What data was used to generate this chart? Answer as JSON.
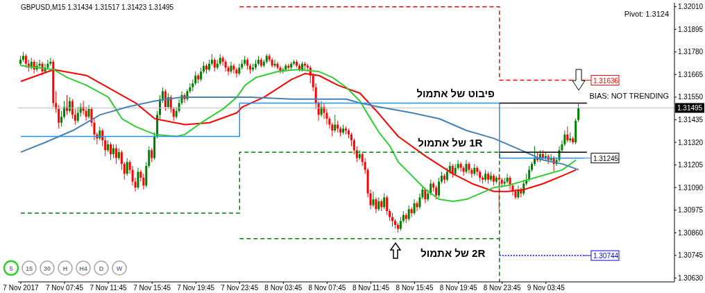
{
  "chart_data": {
    "type": "candlestick",
    "title": "GBPUSD,M15 1.31434 1.31517 1.31423 1.31495",
    "x": [
      "2017-11-07T03:45",
      "2017-11-07T04:00",
      "2017-11-07T04:15",
      "2017-11-07T04:30",
      "2017-11-07T04:45",
      "2017-11-07T05:00",
      "2017-11-07T05:15",
      "2017-11-07T05:30",
      "2017-11-07T05:45",
      "2017-11-07T06:00",
      "2017-11-07T06:15",
      "2017-11-07T06:30",
      "2017-11-07T06:45",
      "2017-11-07T07:00",
      "2017-11-07T07:15",
      "2017-11-07T07:30",
      "2017-11-07T07:45",
      "2017-11-07T08:00",
      "2017-11-07T08:15",
      "2017-11-07T08:30",
      "2017-11-07T08:45",
      "2017-11-07T09:00",
      "2017-11-07T09:15",
      "2017-11-07T09:30",
      "2017-11-07T09:45",
      "2017-11-07T10:00",
      "2017-11-07T10:15",
      "2017-11-07T10:30",
      "2017-11-07T10:45",
      "2017-11-07T11:00",
      "2017-11-07T11:15",
      "2017-11-07T11:30",
      "2017-11-07T11:45",
      "2017-11-07T12:00",
      "2017-11-07T12:15",
      "2017-11-07T12:30",
      "2017-11-07T12:45",
      "2017-11-07T13:00",
      "2017-11-07T13:15",
      "2017-11-07T13:30",
      "2017-11-07T13:45",
      "2017-11-07T14:00",
      "2017-11-07T14:15",
      "2017-11-07T14:30",
      "2017-11-07T14:45",
      "2017-11-07T15:00",
      "2017-11-07T15:15",
      "2017-11-07T15:30",
      "2017-11-07T15:45",
      "2017-11-07T16:00",
      "2017-11-07T16:15",
      "2017-11-07T16:30",
      "2017-11-07T16:45",
      "2017-11-07T17:00",
      "2017-11-07T17:15",
      "2017-11-07T17:30",
      "2017-11-07T17:45",
      "2017-11-07T18:00",
      "2017-11-07T18:15",
      "2017-11-07T18:30",
      "2017-11-07T18:45",
      "2017-11-07T19:00",
      "2017-11-07T19:15",
      "2017-11-07T19:30",
      "2017-11-07T19:45",
      "2017-11-07T20:00",
      "2017-11-07T20:15",
      "2017-11-07T20:30",
      "2017-11-07T20:45",
      "2017-11-07T21:00",
      "2017-11-07T21:15",
      "2017-11-07T21:30",
      "2017-11-07T21:45",
      "2017-11-07T22:00",
      "2017-11-07T22:15",
      "2017-11-07T22:30",
      "2017-11-07T22:45",
      "2017-11-07T23:00",
      "2017-11-07T23:15",
      "2017-11-07T23:30",
      "2017-11-07T23:45",
      "2017-11-08T00:00",
      "2017-11-08T00:15",
      "2017-11-08T00:30",
      "2017-11-08T00:45",
      "2017-11-08T01:00",
      "2017-11-08T01:15",
      "2017-11-08T01:30",
      "2017-11-08T01:45",
      "2017-11-08T02:00",
      "2017-11-08T02:15",
      "2017-11-08T02:30",
      "2017-11-08T02:45",
      "2017-11-08T03:00",
      "2017-11-08T03:15",
      "2017-11-08T03:30",
      "2017-11-08T03:45",
      "2017-11-08T04:00",
      "2017-11-08T04:15",
      "2017-11-08T04:30",
      "2017-11-08T04:45",
      "2017-11-08T05:00",
      "2017-11-08T05:15",
      "2017-11-08T05:30",
      "2017-11-08T05:45",
      "2017-11-08T06:00",
      "2017-11-08T06:15",
      "2017-11-08T06:30",
      "2017-11-08T06:45",
      "2017-11-08T07:00",
      "2017-11-08T07:15",
      "2017-11-08T07:30",
      "2017-11-08T07:45",
      "2017-11-08T08:00",
      "2017-11-08T08:15",
      "2017-11-08T08:30",
      "2017-11-08T08:45",
      "2017-11-08T09:00",
      "2017-11-08T09:15",
      "2017-11-08T09:30",
      "2017-11-08T09:45",
      "2017-11-08T10:00",
      "2017-11-08T10:15",
      "2017-11-08T10:30",
      "2017-11-08T10:45",
      "2017-11-08T11:00",
      "2017-11-08T11:15",
      "2017-11-08T11:30",
      "2017-11-08T11:45",
      "2017-11-08T12:00",
      "2017-11-08T12:15",
      "2017-11-08T12:30",
      "2017-11-08T12:45",
      "2017-11-08T13:00",
      "2017-11-08T13:15",
      "2017-11-08T13:30",
      "2017-11-08T13:45",
      "2017-11-08T14:00",
      "2017-11-08T14:15",
      "2017-11-08T14:30",
      "2017-11-08T14:45",
      "2017-11-08T15:00",
      "2017-11-08T15:15",
      "2017-11-08T15:30",
      "2017-11-08T15:45",
      "2017-11-08T16:00",
      "2017-11-08T16:15",
      "2017-11-08T16:30",
      "2017-11-08T16:45",
      "2017-11-08T17:00",
      "2017-11-08T17:15",
      "2017-11-08T17:30",
      "2017-11-08T17:45",
      "2017-11-08T18:00",
      "2017-11-08T18:15",
      "2017-11-08T18:30",
      "2017-11-08T18:45",
      "2017-11-08T19:00",
      "2017-11-08T19:15",
      "2017-11-08T19:30",
      "2017-11-08T19:45",
      "2017-11-08T20:00",
      "2017-11-08T20:15",
      "2017-11-08T20:30",
      "2017-11-08T20:45",
      "2017-11-08T21:00",
      "2017-11-08T21:15",
      "2017-11-08T21:30",
      "2017-11-08T21:45",
      "2017-11-08T22:00",
      "2017-11-08T22:15",
      "2017-11-08T22:30",
      "2017-11-08T22:45",
      "2017-11-08T23:00",
      "2017-11-08T23:15",
      "2017-11-08T23:30",
      "2017-11-08T23:45",
      "2017-11-09T00:00",
      "2017-11-09T00:15",
      "2017-11-09T00:30",
      "2017-11-09T00:45",
      "2017-11-09T01:00",
      "2017-11-09T01:15",
      "2017-11-09T01:30",
      "2017-11-09T01:45",
      "2017-11-09T02:00",
      "2017-11-09T02:15",
      "2017-11-09T02:30",
      "2017-11-09T02:45",
      "2017-11-09T03:00",
      "2017-11-09T03:15",
      "2017-11-09T03:30",
      "2017-11-09T03:45",
      "2017-11-09T04:00",
      "2017-11-09T04:15",
      "2017-11-09T04:30",
      "2017-11-09T04:45",
      "2017-11-09T05:00",
      "2017-11-09T05:15",
      "2017-11-09T05:30",
      "2017-11-09T05:45",
      "2017-11-09T06:00",
      "2017-11-09T06:15",
      "2017-11-09T06:30",
      "2017-11-09T06:45"
    ],
    "ohlc": [
      [
        1.3172,
        1.3176,
        1.3171,
        1.3174
      ],
      [
        1.3174,
        1.3178,
        1.3173,
        1.3176
      ],
      [
        1.3176,
        1.3177,
        1.317,
        1.3172
      ],
      [
        1.3172,
        1.3174,
        1.3168,
        1.317
      ],
      [
        1.317,
        1.3175,
        1.3169,
        1.3173
      ],
      [
        1.3173,
        1.3174,
        1.3167,
        1.3169
      ],
      [
        1.3169,
        1.3173,
        1.3168,
        1.3171
      ],
      [
        1.3171,
        1.3174,
        1.317,
        1.3172
      ],
      [
        1.3172,
        1.3173,
        1.3166,
        1.3168
      ],
      [
        1.3168,
        1.3172,
        1.3167,
        1.317
      ],
      [
        1.317,
        1.3174,
        1.3169,
        1.3172
      ],
      [
        1.3172,
        1.3175,
        1.3171,
        1.3173
      ],
      [
        1.3173,
        1.3174,
        1.315,
        1.3152
      ],
      [
        1.3152,
        1.3158,
        1.3147,
        1.3149
      ],
      [
        1.3149,
        1.3151,
        1.3139,
        1.3142
      ],
      [
        1.3142,
        1.3148,
        1.314,
        1.3145
      ],
      [
        1.3145,
        1.3153,
        1.3144,
        1.315
      ],
      [
        1.315,
        1.3156,
        1.3146,
        1.3148
      ],
      [
        1.3148,
        1.3155,
        1.3147,
        1.3153
      ],
      [
        1.3153,
        1.3154,
        1.3144,
        1.3146
      ],
      [
        1.3146,
        1.3149,
        1.3141,
        1.3143
      ],
      [
        1.3143,
        1.315,
        1.3142,
        1.3147
      ],
      [
        1.3147,
        1.3152,
        1.3145,
        1.315
      ],
      [
        1.315,
        1.3153,
        1.3146,
        1.3148
      ],
      [
        1.3148,
        1.315,
        1.3143,
        1.3145
      ],
      [
        1.3145,
        1.3151,
        1.3144,
        1.3149
      ],
      [
        1.3149,
        1.315,
        1.314,
        1.3142
      ],
      [
        1.3142,
        1.3144,
        1.3133,
        1.3136
      ],
      [
        1.3136,
        1.3137,
        1.3131,
        1.3134
      ],
      [
        1.3134,
        1.314,
        1.3133,
        1.3138
      ],
      [
        1.3138,
        1.3139,
        1.313,
        1.3133
      ],
      [
        1.3133,
        1.3135,
        1.3125,
        1.3128
      ],
      [
        1.3128,
        1.3133,
        1.3127,
        1.3131
      ],
      [
        1.3131,
        1.3132,
        1.3123,
        1.3126
      ],
      [
        1.3126,
        1.3131,
        1.3124,
        1.3129
      ],
      [
        1.3129,
        1.3131,
        1.3121,
        1.3124
      ],
      [
        1.3124,
        1.3129,
        1.3123,
        1.3127
      ],
      [
        1.3127,
        1.3128,
        1.3118,
        1.3121
      ],
      [
        1.3121,
        1.3122,
        1.3113,
        1.3116
      ],
      [
        1.3116,
        1.3124,
        1.3115,
        1.3122
      ],
      [
        1.3122,
        1.3123,
        1.3116,
        1.3118
      ],
      [
        1.3118,
        1.312,
        1.311,
        1.3112
      ],
      [
        1.3112,
        1.3114,
        1.3107,
        1.3109
      ],
      [
        1.3109,
        1.3119,
        1.3108,
        1.3117
      ],
      [
        1.3117,
        1.3118,
        1.3112,
        1.3114
      ],
      [
        1.3114,
        1.3116,
        1.3108,
        1.311
      ],
      [
        1.311,
        1.3122,
        1.3109,
        1.312
      ],
      [
        1.312,
        1.313,
        1.3119,
        1.3128
      ],
      [
        1.3128,
        1.3129,
        1.3122,
        1.3124
      ],
      [
        1.3124,
        1.3137,
        1.3123,
        1.3135
      ],
      [
        1.3135,
        1.3148,
        1.3134,
        1.3146
      ],
      [
        1.3146,
        1.3156,
        1.3144,
        1.3154
      ],
      [
        1.3154,
        1.316,
        1.3152,
        1.3158
      ],
      [
        1.3158,
        1.3159,
        1.3148,
        1.315
      ],
      [
        1.315,
        1.3157,
        1.3149,
        1.3155
      ],
      [
        1.3155,
        1.3156,
        1.3147,
        1.3149
      ],
      [
        1.3149,
        1.315,
        1.3143,
        1.3145
      ],
      [
        1.3145,
        1.315,
        1.3144,
        1.3148
      ],
      [
        1.3148,
        1.3154,
        1.3147,
        1.3152
      ],
      [
        1.3152,
        1.3158,
        1.3151,
        1.3156
      ],
      [
        1.3156,
        1.3157,
        1.3152,
        1.3154
      ],
      [
        1.3154,
        1.3159,
        1.3153,
        1.3158
      ],
      [
        1.3158,
        1.3162,
        1.3157,
        1.316
      ],
      [
        1.316,
        1.3164,
        1.3158,
        1.3162
      ],
      [
        1.3162,
        1.3168,
        1.3161,
        1.3166
      ],
      [
        1.3166,
        1.3167,
        1.3162,
        1.3164
      ],
      [
        1.3164,
        1.317,
        1.3163,
        1.3168
      ],
      [
        1.3168,
        1.3173,
        1.3167,
        1.3171
      ],
      [
        1.3171,
        1.3172,
        1.3167,
        1.3169
      ],
      [
        1.3169,
        1.3174,
        1.3168,
        1.3172
      ],
      [
        1.3172,
        1.3177,
        1.3171,
        1.3174
      ],
      [
        1.3174,
        1.3175,
        1.3168,
        1.317
      ],
      [
        1.317,
        1.3174,
        1.3169,
        1.3172
      ],
      [
        1.3172,
        1.3177,
        1.3171,
        1.3175
      ],
      [
        1.3175,
        1.3176,
        1.3171,
        1.3173
      ],
      [
        1.3173,
        1.3174,
        1.3168,
        1.317
      ],
      [
        1.317,
        1.3171,
        1.3166,
        1.3168
      ],
      [
        1.3168,
        1.3173,
        1.3167,
        1.3171
      ],
      [
        1.3171,
        1.3172,
        1.3167,
        1.3169
      ],
      [
        1.3169,
        1.317,
        1.3165,
        1.3167
      ],
      [
        1.3167,
        1.3172,
        1.3166,
        1.317
      ],
      [
        1.317,
        1.3174,
        1.3169,
        1.3172
      ],
      [
        1.3172,
        1.3176,
        1.3171,
        1.3174
      ],
      [
        1.3174,
        1.3175,
        1.3169,
        1.3171
      ],
      [
        1.3171,
        1.3172,
        1.3167,
        1.3169
      ],
      [
        1.3169,
        1.3172,
        1.3168,
        1.317
      ],
      [
        1.317,
        1.3174,
        1.3169,
        1.3172
      ],
      [
        1.3172,
        1.3176,
        1.3171,
        1.3174
      ],
      [
        1.3174,
        1.3175,
        1.317,
        1.3171
      ],
      [
        1.3171,
        1.3174,
        1.317,
        1.3173
      ],
      [
        1.3173,
        1.3177,
        1.3172,
        1.3176
      ],
      [
        1.3176,
        1.3177,
        1.3173,
        1.3174
      ],
      [
        1.3174,
        1.3175,
        1.317,
        1.3171
      ],
      [
        1.3171,
        1.3174,
        1.317,
        1.3172
      ],
      [
        1.3172,
        1.3173,
        1.3169,
        1.317
      ],
      [
        1.317,
        1.3171,
        1.3167,
        1.3168
      ],
      [
        1.3168,
        1.317,
        1.3167,
        1.3169
      ],
      [
        1.3169,
        1.3172,
        1.3168,
        1.3171
      ],
      [
        1.3171,
        1.3172,
        1.3169,
        1.317
      ],
      [
        1.317,
        1.3173,
        1.3169,
        1.3172
      ],
      [
        1.3172,
        1.3174,
        1.3171,
        1.3173
      ],
      [
        1.3173,
        1.3174,
        1.317,
        1.3171
      ],
      [
        1.3171,
        1.3172,
        1.3168,
        1.3169
      ],
      [
        1.3169,
        1.3173,
        1.3168,
        1.3172
      ],
      [
        1.3172,
        1.3173,
        1.3169,
        1.3171
      ],
      [
        1.3171,
        1.3172,
        1.3168,
        1.317
      ],
      [
        1.317,
        1.3171,
        1.3162,
        1.3166
      ],
      [
        1.3166,
        1.3167,
        1.3158,
        1.316
      ],
      [
        1.316,
        1.3162,
        1.3149,
        1.3152
      ],
      [
        1.3152,
        1.3153,
        1.3143,
        1.3146
      ],
      [
        1.3146,
        1.3153,
        1.3145,
        1.315
      ],
      [
        1.315,
        1.3152,
        1.3144,
        1.3147
      ],
      [
        1.3147,
        1.3149,
        1.3141,
        1.3144
      ],
      [
        1.3144,
        1.3145,
        1.3139,
        1.3141
      ],
      [
        1.3141,
        1.3142,
        1.3135,
        1.3138
      ],
      [
        1.3138,
        1.3146,
        1.3137,
        1.3141
      ],
      [
        1.3141,
        1.3143,
        1.3137,
        1.3139
      ],
      [
        1.3139,
        1.314,
        1.3135,
        1.3137
      ],
      [
        1.3137,
        1.3141,
        1.3136,
        1.3139
      ],
      [
        1.3139,
        1.314,
        1.3136,
        1.3138
      ],
      [
        1.3138,
        1.3139,
        1.3134,
        1.3136
      ],
      [
        1.3136,
        1.3137,
        1.313,
        1.3133
      ],
      [
        1.3133,
        1.3134,
        1.3126,
        1.3128
      ],
      [
        1.3128,
        1.313,
        1.3122,
        1.3124
      ],
      [
        1.3124,
        1.3128,
        1.3123,
        1.3126
      ],
      [
        1.3126,
        1.3127,
        1.312,
        1.3122
      ],
      [
        1.3122,
        1.3124,
        1.3116,
        1.3118
      ],
      [
        1.3118,
        1.3119,
        1.3104,
        1.3106
      ],
      [
        1.3106,
        1.3108,
        1.3098,
        1.31
      ],
      [
        1.31,
        1.3107,
        1.3099,
        1.3103
      ],
      [
        1.3103,
        1.3104,
        1.3096,
        1.3098
      ],
      [
        1.3098,
        1.3104,
        1.3097,
        1.3102
      ],
      [
        1.3102,
        1.3103,
        1.3097,
        1.3099
      ],
      [
        1.3099,
        1.3106,
        1.3098,
        1.3104
      ],
      [
        1.3104,
        1.3105,
        1.3095,
        1.3097
      ],
      [
        1.3097,
        1.3098,
        1.3092,
        1.3094
      ],
      [
        1.3094,
        1.3096,
        1.3089,
        1.3092
      ],
      [
        1.3092,
        1.3093,
        1.3088,
        1.309
      ],
      [
        1.309,
        1.3091,
        1.3086,
        1.3088
      ],
      [
        1.3088,
        1.3094,
        1.3087,
        1.3092
      ],
      [
        1.3092,
        1.3097,
        1.3091,
        1.3095
      ],
      [
        1.3095,
        1.3096,
        1.3091,
        1.3093
      ],
      [
        1.3093,
        1.31,
        1.3092,
        1.3098
      ],
      [
        1.3098,
        1.3099,
        1.3094,
        1.3096
      ],
      [
        1.3096,
        1.3103,
        1.3095,
        1.3101
      ],
      [
        1.3101,
        1.3102,
        1.3097,
        1.3099
      ],
      [
        1.3099,
        1.3106,
        1.3098,
        1.3104
      ],
      [
        1.3104,
        1.311,
        1.3103,
        1.3108
      ],
      [
        1.3108,
        1.3109,
        1.3101,
        1.3103
      ],
      [
        1.3103,
        1.3108,
        1.3102,
        1.3106
      ],
      [
        1.3106,
        1.3113,
        1.3105,
        1.3111
      ],
      [
        1.3111,
        1.3112,
        1.3107,
        1.3109
      ],
      [
        1.3109,
        1.311,
        1.3103,
        1.3105
      ],
      [
        1.3105,
        1.3114,
        1.3104,
        1.3112
      ],
      [
        1.3112,
        1.3117,
        1.3111,
        1.3115
      ],
      [
        1.3115,
        1.3116,
        1.3111,
        1.3113
      ],
      [
        1.3113,
        1.3119,
        1.3112,
        1.3117
      ],
      [
        1.3117,
        1.3122,
        1.3116,
        1.312
      ],
      [
        1.312,
        1.3121,
        1.3114,
        1.3116
      ],
      [
        1.3116,
        1.3121,
        1.3115,
        1.3119
      ],
      [
        1.3119,
        1.3123,
        1.3118,
        1.3121
      ],
      [
        1.3121,
        1.3122,
        1.3117,
        1.3119
      ],
      [
        1.3119,
        1.312,
        1.3115,
        1.3117
      ],
      [
        1.3117,
        1.3123,
        1.3116,
        1.3121
      ],
      [
        1.3121,
        1.3122,
        1.3116,
        1.3118
      ],
      [
        1.3118,
        1.3119,
        1.3114,
        1.3116
      ],
      [
        1.3116,
        1.3121,
        1.3115,
        1.3119
      ],
      [
        1.3119,
        1.312,
        1.3115,
        1.3117
      ],
      [
        1.3117,
        1.3118,
        1.3112,
        1.3114
      ],
      [
        1.3114,
        1.3115,
        1.3111,
        1.3113
      ],
      [
        1.3113,
        1.3118,
        1.3112,
        1.3116
      ],
      [
        1.3116,
        1.3117,
        1.3111,
        1.3113
      ],
      [
        1.3113,
        1.3117,
        1.3112,
        1.3115
      ],
      [
        1.3115,
        1.3116,
        1.311,
        1.3112
      ],
      [
        1.3112,
        1.3115,
        1.3111,
        1.3114
      ],
      [
        1.3114,
        1.3116,
        1.3098,
        1.3113
      ],
      [
        1.3113,
        1.3114,
        1.3109,
        1.3111
      ],
      [
        1.3111,
        1.3114,
        1.311,
        1.3112
      ],
      [
        1.3112,
        1.3116,
        1.3111,
        1.3114
      ],
      [
        1.3114,
        1.3115,
        1.3108,
        1.311
      ],
      [
        1.311,
        1.3111,
        1.3105,
        1.3107
      ],
      [
        1.3107,
        1.3108,
        1.3103,
        1.3104
      ],
      [
        1.3104,
        1.311,
        1.3103,
        1.3108
      ],
      [
        1.3108,
        1.3109,
        1.3104,
        1.3106
      ],
      [
        1.3106,
        1.3113,
        1.3105,
        1.3111
      ],
      [
        1.3111,
        1.3116,
        1.311,
        1.3113
      ],
      [
        1.3113,
        1.312,
        1.3112,
        1.3118
      ],
      [
        1.3118,
        1.3122,
        1.3117,
        1.3121
      ],
      [
        1.3121,
        1.313,
        1.312,
        1.3124
      ],
      [
        1.3124,
        1.3127,
        1.3122,
        1.3123
      ],
      [
        1.3123,
        1.3128,
        1.3122,
        1.3126
      ],
      [
        1.3126,
        1.3128,
        1.3123,
        1.3124
      ],
      [
        1.3124,
        1.3127,
        1.3123,
        1.3125
      ],
      [
        1.3125,
        1.3126,
        1.3121,
        1.3123
      ],
      [
        1.3123,
        1.3126,
        1.3122,
        1.3124
      ],
      [
        1.3124,
        1.3125,
        1.3117,
        1.3121
      ],
      [
        1.3121,
        1.3124,
        1.312,
        1.3123
      ],
      [
        1.3123,
        1.313,
        1.3122,
        1.3128
      ],
      [
        1.3128,
        1.3133,
        1.3127,
        1.3131
      ],
      [
        1.3131,
        1.3138,
        1.313,
        1.3136
      ],
      [
        1.3136,
        1.314,
        1.3132,
        1.3133
      ],
      [
        1.3133,
        1.3137,
        1.3132,
        1.3134
      ],
      [
        1.3134,
        1.3135,
        1.3131,
        1.3132
      ],
      [
        1.3132,
        1.3144,
        1.3131,
        1.3143
      ],
      [
        1.31434,
        1.31517,
        1.31423,
        1.31495
      ]
    ],
    "series": [
      {
        "type": "line",
        "color": "#ff0000",
        "line_style": "solid",
        "x": [
          "2017-11-07T03:45",
          "2017-11-07T06:45",
          "2017-11-07T09:45",
          "2017-11-07T14:15",
          "2017-11-07T16:00",
          "2017-11-07T18:45",
          "2017-11-07T21:00",
          "2017-11-07T23:30",
          "2017-11-08T00:00",
          "2017-11-08T02:00",
          "2017-11-08T04:30",
          "2017-11-08T05:45",
          "2017-11-08T07:00",
          "2017-11-08T08:45",
          "2017-11-08T10:45",
          "2017-11-08T12:15",
          "2017-11-08T14:15",
          "2017-11-08T16:45",
          "2017-11-08T19:15",
          "2017-11-08T21:00",
          "2017-11-08T23:00",
          "2017-11-09T00:15",
          "2017-11-09T01:45",
          "2017-11-09T03:30",
          "2017-11-09T05:15",
          "2017-11-09T06:30"
        ],
        "values": [
          1.3163,
          1.3169,
          1.3166,
          1.3152,
          1.3144,
          1.3141,
          1.3142,
          1.3147,
          1.315,
          1.3155,
          1.3164,
          1.3167,
          1.3166,
          1.3161,
          1.3157,
          1.3148,
          1.3135,
          1.3125,
          1.3116,
          1.3111,
          1.3107,
          1.3107,
          1.3108,
          1.3111,
          1.3115,
          1.3118
        ]
      },
      {
        "type": "line",
        "color": "#32cd32",
        "line_style": "solid",
        "x": [
          "2017-11-07T03:45",
          "2017-11-07T06:45",
          "2017-11-07T08:00",
          "2017-11-07T09:45",
          "2017-11-07T11:45",
          "2017-11-07T13:00",
          "2017-11-07T14:15",
          "2017-11-07T16:00",
          "2017-11-07T18:00",
          "2017-11-07T18:45",
          "2017-11-07T20:15",
          "2017-11-07T22:15",
          "2017-11-07T23:30",
          "2017-11-08T00:15",
          "2017-11-08T01:15",
          "2017-11-08T03:15",
          "2017-11-08T05:00",
          "2017-11-08T07:00",
          "2017-11-08T08:15",
          "2017-11-08T09:30",
          "2017-11-08T10:45",
          "2017-11-08T11:30",
          "2017-11-08T12:30",
          "2017-11-08T13:30",
          "2017-11-08T14:15",
          "2017-11-08T15:30",
          "2017-11-08T16:45",
          "2017-11-08T18:00",
          "2017-11-08T19:15",
          "2017-11-08T20:30",
          "2017-11-08T21:45",
          "2017-11-08T23:00",
          "2017-11-09T00:15",
          "2017-11-09T01:30",
          "2017-11-09T02:45",
          "2017-11-09T04:00",
          "2017-11-09T05:15",
          "2017-11-09T06:30"
        ],
        "values": [
          1.3171,
          1.3169,
          1.3165,
          1.3161,
          1.3155,
          1.3144,
          1.314,
          1.3136,
          1.3135,
          1.3136,
          1.3142,
          1.3149,
          1.3155,
          1.3161,
          1.3165,
          1.3168,
          1.3169,
          1.3168,
          1.3165,
          1.316,
          1.3153,
          1.3146,
          1.3137,
          1.313,
          1.3122,
          1.3115,
          1.3108,
          1.3103,
          1.3102,
          1.3103,
          1.3106,
          1.3109,
          1.311,
          1.3112,
          1.3114,
          1.3116,
          1.3118,
          1.3123
        ]
      },
      {
        "type": "line",
        "color": "#4682b4",
        "line_style": "solid",
        "x": [
          "2017-11-07T03:45",
          "2017-11-07T06:00",
          "2017-11-07T08:30",
          "2017-11-07T11:00",
          "2017-11-07T13:30",
          "2017-11-07T16:00",
          "2017-11-07T18:30",
          "2017-11-07T22:15",
          "2017-11-08T00:45",
          "2017-11-08T04:30",
          "2017-11-08T07:00",
          "2017-11-08T09:30",
          "2017-11-08T10:45",
          "2017-11-08T12:30",
          "2017-11-08T15:30",
          "2017-11-08T18:00",
          "2017-11-08T20:30",
          "2017-11-08T23:00",
          "2017-11-09T01:30",
          "2017-11-09T03:30",
          "2017-11-09T05:15",
          "2017-11-09T06:45"
        ],
        "values": [
          1.3127,
          1.3132,
          1.3138,
          1.3146,
          1.315,
          1.3153,
          1.3155,
          1.3155,
          1.3155,
          1.3154,
          1.3154,
          1.3154,
          1.3152,
          1.315,
          1.3147,
          1.3144,
          1.3138,
          1.3134,
          1.3128,
          1.3123,
          1.3121,
          1.3118
        ]
      },
      {
        "type": "line",
        "name": "1.31245",
        "color": "#1e90ff",
        "line_style": "solid",
        "x": [
          "2017-11-07T03:45",
          "2017-11-07T23:45",
          "2017-11-07T23:45",
          "2017-11-08T23:30",
          "2017-11-08T23:30",
          "2017-11-09T07:15"
        ],
        "values": [
          1.3135,
          1.3135,
          1.3152,
          1.3152,
          1.3124,
          1.3124
        ]
      },
      {
        "type": "line",
        "name": "1.31636",
        "color": "#ff0000",
        "line_style": "dashed",
        "x": [
          "2017-11-07T23:45",
          "2017-11-08T23:30",
          "2017-11-08T23:30",
          "2017-11-09T07:15"
        ],
        "values": [
          1.3201,
          1.3201,
          1.31636,
          1.31636
        ]
      },
      {
        "type": "line",
        "color": "#008000",
        "line_style": "dashed",
        "x": [
          "2017-11-07T03:45",
          "2017-11-07T23:45",
          "2017-11-07T23:45",
          "2017-11-08T23:30",
          "2017-11-08T23:30"
        ],
        "values": [
          1.3096,
          1.3096,
          1.3127,
          1.3127,
          1.3061
        ]
      },
      {
        "type": "line",
        "color": "#008000",
        "line_style": "dashed",
        "x": [
          "2017-11-07T23:45",
          "2017-11-08T23:30"
        ],
        "values": [
          1.3083,
          1.3083
        ]
      },
      {
        "type": "line",
        "name": "1.30744",
        "color": "#0000ff",
        "line_style": "dotted",
        "x": [
          "2017-11-08T23:30",
          "2017-11-09T07:15"
        ],
        "values": [
          1.30744,
          1.30744
        ]
      },
      {
        "type": "line",
        "color": "#000000",
        "line_style": "solid",
        "x": [
          "2017-11-08T23:30",
          "2017-11-09T07:30"
        ],
        "values": [
          1.3152,
          1.3152
        ]
      },
      {
        "type": "line",
        "color": "#000000",
        "line_style": "solid",
        "x": [
          "2017-11-08T23:30",
          "2017-11-09T07:30"
        ],
        "values": [
          1.3127,
          1.3127
        ]
      }
    ],
    "xlim": [
      "2017-11-07T03:30",
      "2017-11-09T15:30"
    ],
    "xticks": [
      {
        "value": "2017-11-07T03:45",
        "label": "7 Nov 2017"
      },
      {
        "value": "2017-11-07T07:45",
        "label": "7 Nov 07:45"
      },
      {
        "value": "2017-11-07T11:45",
        "label": "7 Nov 11:45"
      },
      {
        "value": "2017-11-07T15:45",
        "label": "7 Nov 15:45"
      },
      {
        "value": "2017-11-07T19:45",
        "label": "7 Nov 19:45"
      },
      {
        "value": "2017-11-07T23:45",
        "label": "7 Nov 23:45"
      },
      {
        "value": "2017-11-08T03:45",
        "label": "8 Nov 03:45"
      },
      {
        "value": "2017-11-08T07:45",
        "label": "8 Nov 07:45"
      },
      {
        "value": "2017-11-08T11:45",
        "label": "8 Nov 11:45"
      },
      {
        "value": "2017-11-08T15:45",
        "label": "8 Nov 15:45"
      },
      {
        "value": "2017-11-08T19:45",
        "label": "8 Nov 19:45"
      },
      {
        "value": "2017-11-08T23:45",
        "label": "8 Nov 23:45"
      },
      {
        "value": "2017-11-09T03:45",
        "label": "9 Nov 03:45"
      }
    ],
    "ylim": [
      1.3061,
      1.3203
    ],
    "yticks": [
      {
        "value": 1.3063,
        "label": "1.30630"
      },
      {
        "value": 1.30745,
        "label": "1.30745"
      },
      {
        "value": 1.3086,
        "label": "1.30860"
      },
      {
        "value": 1.30975,
        "label": "1.30975"
      },
      {
        "value": 1.3109,
        "label": "1.31090"
      },
      {
        "value": 1.31205,
        "label": "1.31205"
      },
      {
        "value": 1.3132,
        "label": "1.31320"
      },
      {
        "value": 1.31435,
        "label": "1.31435"
      },
      {
        "value": 1.3155,
        "label": "1.31550"
      },
      {
        "value": 1.31665,
        "label": "1.31665"
      },
      {
        "value": 1.3178,
        "label": "1.31780"
      },
      {
        "value": 1.31895,
        "label": "1.31895"
      },
      {
        "value": 1.3201,
        "label": "1.32010"
      }
    ],
    "legend": "right",
    "ref_lines": [
      {
        "axis": "y",
        "value": 1.31495,
        "label": "1.31495",
        "color": "#c0c0c0"
      }
    ],
    "annotations": [
      "Pivot: 1.3124",
      "BIAS: NOT TRENDING",
      {
        "text": "פיבוט של אתמול",
        "x": "2017-11-08T19:30",
        "y": 1.3152
      },
      {
        "text": "1R של אתמול",
        "x": "2017-11-08T19:00",
        "y": 1.3127
      },
      {
        "text": "2R של אתמול",
        "x": "2017-11-08T19:15",
        "y": 1.3083
      },
      "5",
      "15",
      "30",
      "H",
      "H4",
      "D",
      "W"
    ]
  }
}
